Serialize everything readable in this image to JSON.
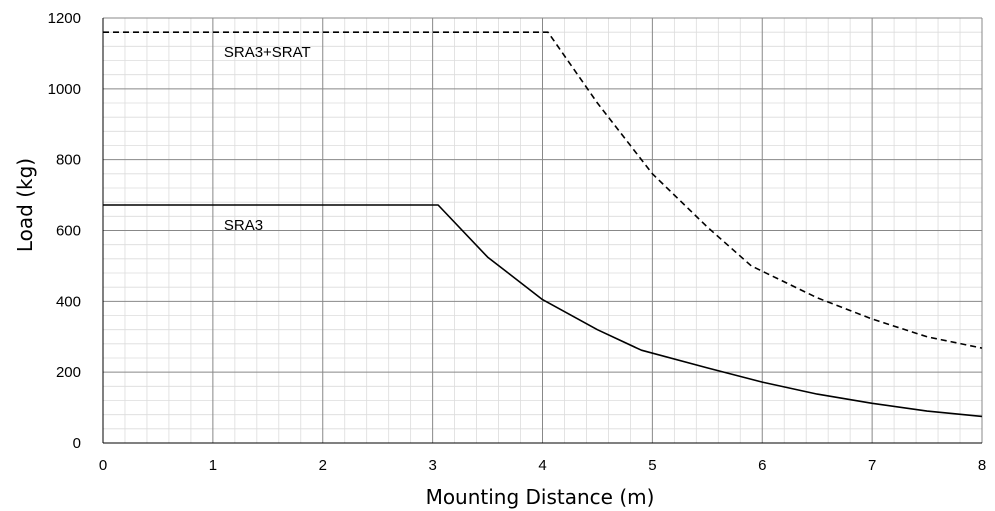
{
  "chart_data": {
    "type": "line",
    "title": "",
    "xlabel": "Mounting Distance (m)",
    "ylabel": "Load (kg)",
    "xlim": [
      0,
      8
    ],
    "ylim": [
      0,
      1200
    ],
    "x_ticks": [
      "0",
      "1",
      "2",
      "3",
      "4",
      "5",
      "6",
      "7",
      "8"
    ],
    "y_ticks": [
      "0",
      "200",
      "400",
      "600",
      "800",
      "1000",
      "1200"
    ],
    "grid": "major and minor",
    "legend": "none",
    "series": [
      {
        "name": "SRA3+SRAT",
        "style": "dashed",
        "color": "#000000",
        "points": [
          [
            0,
            1160
          ],
          [
            4.05,
            1160
          ],
          [
            4.5,
            960
          ],
          [
            5.0,
            760
          ],
          [
            5.5,
            610
          ],
          [
            5.9,
            500
          ],
          [
            6.5,
            410
          ],
          [
            7.0,
            350
          ],
          [
            7.5,
            300
          ],
          [
            8.0,
            268
          ]
        ]
      },
      {
        "name": "SRA3",
        "style": "solid",
        "color": "#000000",
        "points": [
          [
            0,
            672
          ],
          [
            3.05,
            672
          ],
          [
            3.5,
            525
          ],
          [
            4.0,
            405
          ],
          [
            4.5,
            320
          ],
          [
            4.9,
            262
          ],
          [
            5.5,
            212
          ],
          [
            6.0,
            172
          ],
          [
            6.5,
            138
          ],
          [
            7.0,
            112
          ],
          [
            7.5,
            90
          ],
          [
            8.0,
            75
          ]
        ]
      }
    ]
  }
}
